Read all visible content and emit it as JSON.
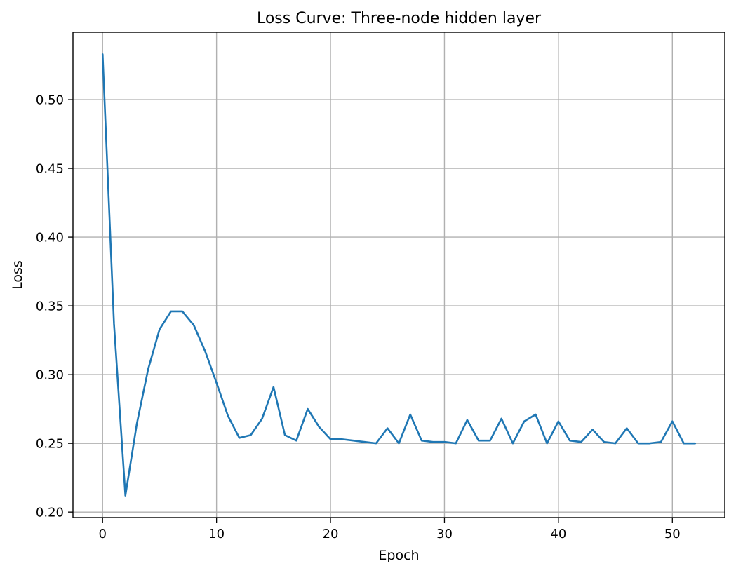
{
  "chart_data": {
    "type": "line",
    "title": "Loss Curve: Three-node hidden layer",
    "xlabel": "Epoch",
    "ylabel": "Loss",
    "xlim": [
      -2.6,
      54.6
    ],
    "ylim": [
      0.196,
      0.549
    ],
    "xticks": [
      0,
      10,
      20,
      30,
      40,
      50
    ],
    "yticks": [
      0.2,
      0.25,
      0.3,
      0.35,
      0.4,
      0.45,
      0.5
    ],
    "xtick_labels": [
      "0",
      "10",
      "20",
      "30",
      "40",
      "50"
    ],
    "ytick_labels": [
      "0.20",
      "0.25",
      "0.30",
      "0.35",
      "0.40",
      "0.45",
      "0.50"
    ],
    "grid": true,
    "series": [
      {
        "color": "#1f77b4",
        "x": [
          0,
          1,
          2,
          3,
          4,
          5,
          6,
          7,
          8,
          9,
          10,
          11,
          12,
          13,
          14,
          15,
          16,
          17,
          18,
          19,
          20,
          21,
          22,
          23,
          24,
          25,
          26,
          27,
          28,
          29,
          30,
          31,
          32,
          33,
          34,
          35,
          36,
          37,
          38,
          39,
          40,
          41,
          42,
          43,
          44,
          45,
          46,
          47,
          48,
          49,
          50,
          51,
          52
        ],
        "y": [
          0.533,
          0.337,
          0.212,
          0.264,
          0.304,
          0.333,
          0.346,
          0.346,
          0.336,
          0.317,
          0.294,
          0.27,
          0.254,
          0.256,
          0.268,
          0.291,
          0.256,
          0.252,
          0.275,
          0.262,
          0.253,
          0.253,
          0.252,
          0.251,
          0.25,
          0.261,
          0.25,
          0.271,
          0.252,
          0.251,
          0.251,
          0.25,
          0.267,
          0.252,
          0.252,
          0.268,
          0.25,
          0.266,
          0.271,
          0.25,
          0.266,
          0.252,
          0.251,
          0.26,
          0.251,
          0.25,
          0.261,
          0.25,
          0.25,
          0.251,
          0.266,
          0.25,
          0.25
        ]
      }
    ]
  }
}
